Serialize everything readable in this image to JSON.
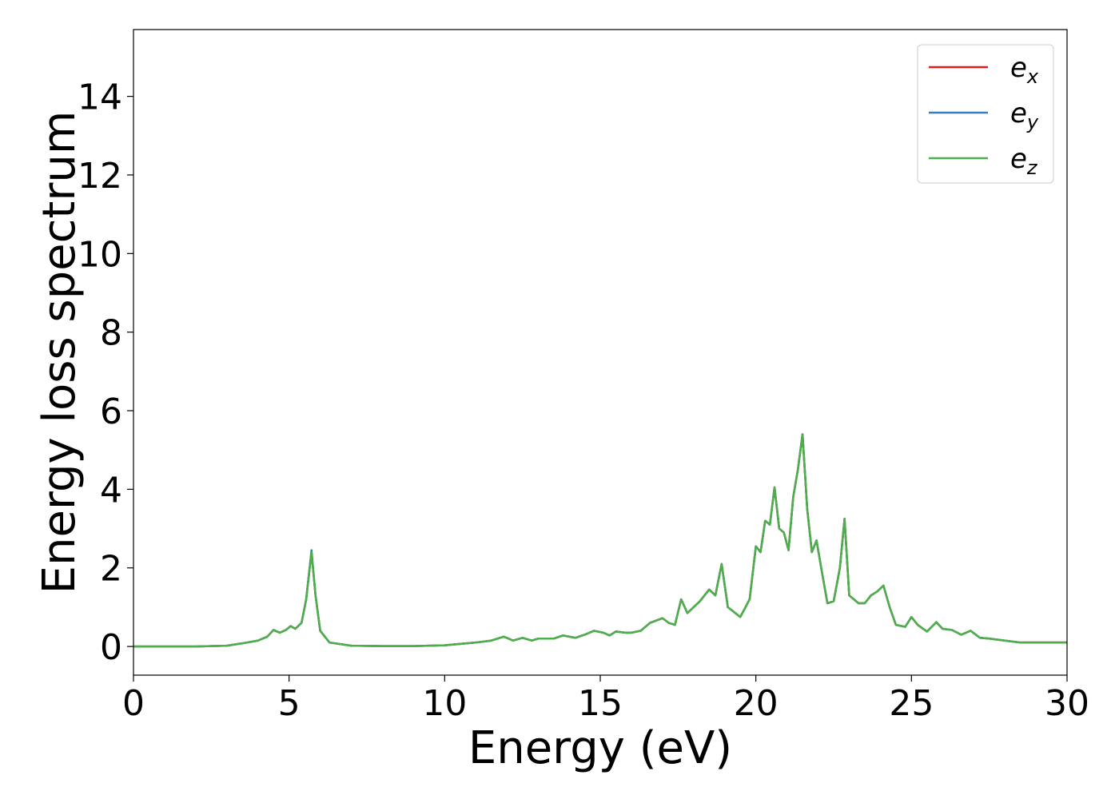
{
  "chart_data": {
    "type": "line",
    "xlabel": "Energy (eV)",
    "ylabel": "Energy loss spectrum",
    "xlim": [
      0,
      30
    ],
    "ylim": [
      -0.73,
      15.7
    ],
    "xticks": [
      0,
      5,
      10,
      15,
      20,
      25,
      30
    ],
    "yticks": [
      0,
      2,
      4,
      6,
      8,
      10,
      12,
      14
    ],
    "grid": false,
    "legend": "upper right",
    "x": [
      0,
      1,
      2,
      3,
      3.5,
      4,
      4.3,
      4.5,
      4.7,
      4.9,
      5.05,
      5.2,
      5.4,
      5.55,
      5.72,
      5.85,
      6.0,
      6.3,
      7,
      8,
      9,
      10,
      11,
      11.5,
      11.9,
      12.2,
      12.5,
      12.8,
      13,
      13.5,
      13.8,
      14.2,
      14.5,
      14.8,
      15.1,
      15.3,
      15.5,
      15.8,
      16,
      16.3,
      16.6,
      17,
      17.2,
      17.4,
      17.6,
      17.8,
      18,
      18.2,
      18.5,
      18.7,
      18.9,
      19.1,
      19.5,
      19.8,
      20,
      20.15,
      20.3,
      20.45,
      20.6,
      20.75,
      20.9,
      21.05,
      21.2,
      21.35,
      21.5,
      21.65,
      21.8,
      21.95,
      22.1,
      22.3,
      22.5,
      22.7,
      22.85,
      23,
      23.3,
      23.5,
      23.7,
      23.9,
      24.1,
      24.3,
      24.5,
      24.8,
      25,
      25.2,
      25.5,
      25.8,
      26,
      26.3,
      26.6,
      26.9,
      27.2,
      27.5,
      28,
      28.5,
      29,
      30
    ],
    "series": [
      {
        "name": "ex",
        "color": "#e41a1c",
        "values": [
          0,
          0,
          0,
          0.02,
          0.08,
          0.15,
          0.25,
          0.42,
          0.35,
          0.42,
          0.52,
          0.45,
          0.6,
          1.2,
          2.4,
          1.3,
          0.4,
          0.1,
          0.02,
          0.01,
          0.01,
          0.03,
          0.1,
          0.15,
          0.25,
          0.15,
          0.22,
          0.15,
          0.2,
          0.2,
          0.28,
          0.22,
          0.3,
          0.4,
          0.35,
          0.28,
          0.38,
          0.35,
          0.35,
          0.4,
          0.6,
          0.72,
          0.6,
          0.55,
          1.2,
          0.85,
          1.0,
          1.15,
          1.45,
          1.3,
          2.1,
          1.0,
          0.75,
          1.2,
          2.55,
          2.4,
          3.2,
          3.1,
          4.05,
          3.0,
          2.9,
          2.45,
          3.8,
          4.5,
          5.4,
          3.5,
          2.4,
          2.7,
          2.0,
          1.1,
          1.15,
          2.0,
          3.25,
          1.3,
          1.1,
          1.1,
          1.3,
          1.4,
          1.55,
          1.0,
          0.55,
          0.5,
          0.75,
          0.55,
          0.38,
          0.62,
          0.45,
          0.42,
          0.3,
          0.4,
          0.22,
          0.2,
          0.15,
          0.1,
          0.1,
          0.1
        ]
      },
      {
        "name": "ey",
        "color": "#377eb8",
        "values": [
          0,
          0,
          0,
          0.02,
          0.08,
          0.15,
          0.25,
          0.42,
          0.35,
          0.42,
          0.52,
          0.45,
          0.6,
          1.2,
          2.45,
          1.3,
          0.4,
          0.1,
          0.02,
          0.01,
          0.01,
          0.03,
          0.1,
          0.15,
          0.25,
          0.15,
          0.22,
          0.15,
          0.2,
          0.2,
          0.28,
          0.22,
          0.3,
          0.4,
          0.35,
          0.28,
          0.38,
          0.35,
          0.35,
          0.4,
          0.6,
          0.72,
          0.6,
          0.55,
          1.2,
          0.85,
          1.0,
          1.15,
          1.45,
          1.3,
          2.1,
          1.0,
          0.75,
          1.2,
          2.55,
          2.4,
          3.2,
          3.1,
          4.05,
          3.0,
          2.9,
          2.45,
          3.8,
          4.5,
          5.4,
          3.5,
          2.4,
          2.7,
          2.0,
          1.1,
          1.15,
          2.0,
          3.25,
          1.3,
          1.1,
          1.1,
          1.3,
          1.4,
          1.55,
          1.0,
          0.55,
          0.5,
          0.75,
          0.55,
          0.38,
          0.62,
          0.45,
          0.42,
          0.3,
          0.4,
          0.22,
          0.2,
          0.15,
          0.1,
          0.1,
          0.1
        ]
      },
      {
        "name": "ez",
        "color": "#4daf4a",
        "values": [
          0,
          0,
          0,
          0.02,
          0.08,
          0.15,
          0.25,
          0.42,
          0.35,
          0.42,
          0.52,
          0.45,
          0.6,
          1.2,
          2.4,
          1.3,
          0.4,
          0.1,
          0.02,
          0.01,
          0.01,
          0.03,
          0.1,
          0.15,
          0.25,
          0.15,
          0.22,
          0.15,
          0.2,
          0.2,
          0.28,
          0.22,
          0.3,
          0.4,
          0.35,
          0.28,
          0.38,
          0.35,
          0.35,
          0.4,
          0.6,
          0.72,
          0.6,
          0.55,
          1.2,
          0.85,
          1.0,
          1.15,
          1.45,
          1.3,
          2.1,
          1.0,
          0.75,
          1.2,
          2.55,
          2.4,
          3.2,
          3.1,
          4.05,
          3.0,
          2.9,
          2.45,
          3.8,
          4.5,
          5.4,
          3.5,
          2.4,
          2.7,
          2.0,
          1.1,
          1.15,
          2.0,
          3.25,
          1.3,
          1.1,
          1.1,
          1.3,
          1.4,
          1.55,
          1.0,
          0.55,
          0.5,
          0.75,
          0.55,
          0.38,
          0.62,
          0.45,
          0.42,
          0.3,
          0.4,
          0.22,
          0.2,
          0.15,
          0.1,
          0.1,
          0.1
        ]
      }
    ]
  }
}
